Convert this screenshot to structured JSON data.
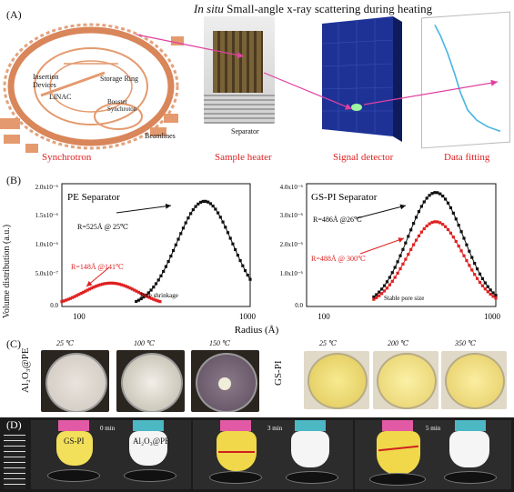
{
  "panelA": {
    "label": "(A)",
    "title_italic": "In situ",
    "title_rest": " Small-angle x-ray scattering during heating",
    "synchrotron_labels": {
      "insertion_devices": "Insertion\nDevices",
      "linac": "LINAC",
      "storage_ring": "Storage Ring",
      "booster": "Booster\nSynchroton",
      "beamlines": "Beamlines"
    },
    "separator_label": "Separator",
    "captions": [
      "Synchrotron",
      "Sample heater",
      "Signal detector",
      "Data fitting"
    ],
    "colors": {
      "ring": "#e49a6e",
      "arrow": "#e040a0",
      "detector": "#1a2a8a"
    }
  },
  "panelB": {
    "label": "(B)",
    "ylabel": "Volume distribution (a.u.)",
    "xlabel": "Radius (Å)",
    "left": {
      "title": "PE Separator",
      "black_annot": "R=525Å @ 25℃",
      "red_annot": "R=148Å @141℃",
      "shrink_note": "Pore shrinkage",
      "yticks": [
        "2.0x10⁻⁶",
        "1.5x10⁻⁶",
        "1.0x10⁻⁶",
        "5.0x10⁻⁷",
        "0.0"
      ],
      "xticks": [
        "100",
        "1000"
      ]
    },
    "right": {
      "title": "GS-PI Separator",
      "black_annot": "R=486Å @26℃",
      "red_annot": "R=488Å @ 300℃",
      "stable_note": "Stable pore size",
      "yticks": [
        "4.0x10⁻⁶",
        "3.0x10⁻⁶",
        "2.0x10⁻⁶",
        "1.0x10⁻⁶",
        "0.0"
      ],
      "xticks": [
        "100",
        "1000"
      ]
    },
    "colors": {
      "black": "#111111",
      "red": "#e02020"
    }
  },
  "chart_data": [
    {
      "type": "scatter",
      "title": "PE Separator",
      "xlabel": "Radius (Å)",
      "ylabel": "Volume distribution (a.u.)",
      "xscale": "log",
      "xlim": [
        70,
        1000
      ],
      "ylim": [
        0,
        2.1e-06
      ],
      "series": [
        {
          "name": "R=525Å @ 25℃",
          "color": "#111111",
          "center": 525,
          "peak": 1.8e-06,
          "start": 200,
          "end": 1000
        },
        {
          "name": "R=148Å @141℃",
          "color": "#e02020",
          "center": 140,
          "peak": 4e-07,
          "start": 70,
          "end": 280
        }
      ]
    },
    {
      "type": "scatter",
      "title": "GS-PI Separator",
      "xlabel": "Radius (Å)",
      "ylabel": "Volume distribution (a.u.)",
      "xscale": "log",
      "xlim": [
        70,
        1000
      ],
      "ylim": [
        0,
        4.2e-06
      ],
      "series": [
        {
          "name": "R=486Å @26℃",
          "color": "#111111",
          "center": 430,
          "peak": 3.9e-06,
          "start": 180,
          "end": 1000
        },
        {
          "name": "R=488Å @ 300℃",
          "color": "#e02020",
          "center": 430,
          "peak": 2.9e-06,
          "start": 180,
          "end": 1000
        }
      ]
    }
  ],
  "panelC": {
    "label": "(C)",
    "left_side_label": "Al₂O₃@PE",
    "right_side_label": "GS-PI",
    "left_temps": [
      "25 ℃",
      "100 ℃",
      "150 ℃"
    ],
    "right_temps": [
      "25 ℃",
      "200 ℃",
      "350 ℃"
    ]
  },
  "panelD": {
    "label": "(D)",
    "sample_left": "GS-PI",
    "sample_right": "Al₂O₃@PE",
    "times": [
      "0 min",
      "3 min",
      "5 min"
    ]
  }
}
